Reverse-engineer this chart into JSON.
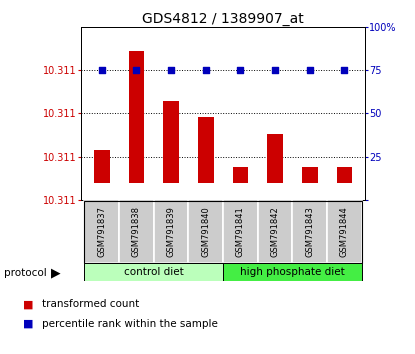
{
  "title": "GDS4812 / 1389907_at",
  "samples": [
    "GSM791837",
    "GSM791838",
    "GSM791839",
    "GSM791840",
    "GSM791841",
    "GSM791842",
    "GSM791843",
    "GSM791844"
  ],
  "bar_tops": [
    10.3112,
    10.3118,
    10.3115,
    10.3114,
    10.3111,
    10.3113,
    10.3111,
    10.3111
  ],
  "bar_bottom": 10.311,
  "percentile_values": [
    75,
    75,
    75,
    75,
    75,
    75,
    75,
    75
  ],
  "ylim_left": [
    10.3109,
    10.31195
  ],
  "ylim_right": [
    0,
    100
  ],
  "ytick_positions_right": [
    0,
    25,
    50,
    75,
    100
  ],
  "bar_color": "#cc0000",
  "percentile_color": "#0000bb",
  "group1_label": "control diet",
  "group2_label": "high phosphate diet",
  "group1_color": "#bbffbb",
  "group2_color": "#44ee44",
  "protocol_label": "protocol",
  "legend_red_label": "transformed count",
  "legend_blue_label": "percentile rank within the sample",
  "sample_box_color": "#cccccc",
  "title_fontsize": 10,
  "tick_fontsize": 7,
  "sample_fontsize": 6
}
